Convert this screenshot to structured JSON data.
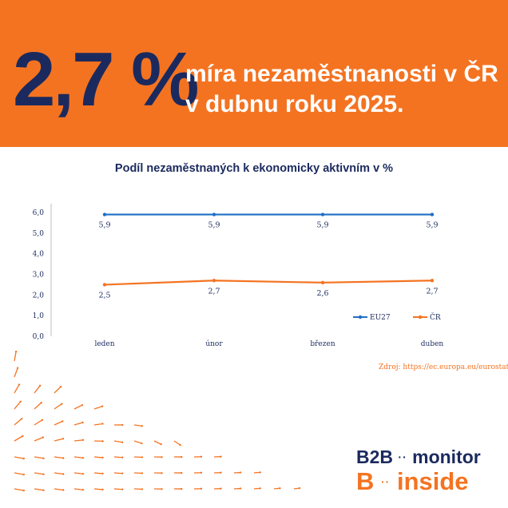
{
  "header": {
    "big_number": "2,7 %",
    "headline_line1": "míra nezaměstnanosti v ČR",
    "headline_line2": "v dubnu roku 2025."
  },
  "colors": {
    "brand_orange": "#f47321",
    "brand_navy": "#1b2a5e",
    "eu27_line": "#1f6fc5",
    "cr_line": "#f47321"
  },
  "chart_data": {
    "type": "line",
    "title": "Podíl nezaměstnaných k ekonomicky aktivním v %",
    "categories": [
      "leden",
      "únor",
      "březen",
      "duben"
    ],
    "series": [
      {
        "name": "EU27",
        "values": [
          5.9,
          5.9,
          5.9,
          5.9
        ],
        "labels": [
          "5,9",
          "5,9",
          "5,9",
          "5,9"
        ],
        "color": "#1f6fc5"
      },
      {
        "name": "ČR",
        "values": [
          2.5,
          2.7,
          2.6,
          2.7
        ],
        "labels": [
          "2,5",
          "2,7",
          "2,6",
          "2,7"
        ],
        "color": "#f47321"
      }
    ],
    "ylim": [
      0,
      6
    ],
    "yticks": [
      0,
      1,
      2,
      3,
      4,
      5,
      6
    ],
    "ytick_labels": [
      "0,0",
      "1,0",
      "2,0",
      "3,0",
      "4,0",
      "5,0",
      "6,0"
    ],
    "legend_position": "bottom-right",
    "grid": false
  },
  "source": "Zdroj: https://ec.europa.eu/eurostat/",
  "logo": {
    "line1_a": "B2B",
    "line1_dots": "··",
    "line1_b": "monitor",
    "line2_a": "B",
    "line2_dots": "··",
    "line2_b": "inside"
  }
}
